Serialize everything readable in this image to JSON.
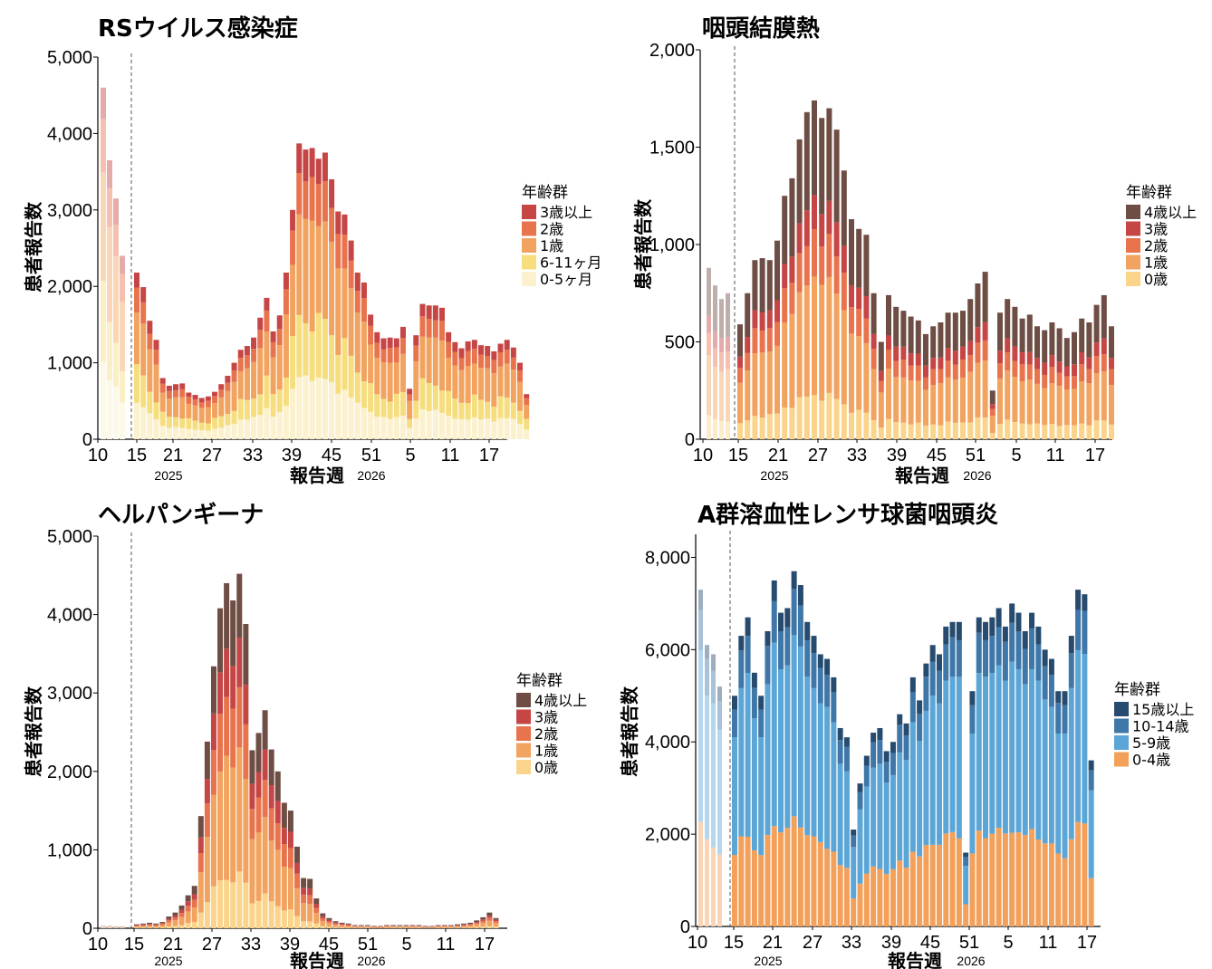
{
  "chart_data": [
    {
      "type": "bar",
      "stacked": true,
      "title": "RSウイルス感染症",
      "ylabel": "患者報告数",
      "xlabel": "報告週",
      "ylim": [
        0,
        5000
      ],
      "yticks": [
        "0",
        "1,000",
        "2,000",
        "3,000",
        "4,000",
        "5,000"
      ],
      "xticks": [
        "10",
        "15",
        "21",
        "27",
        "33",
        "39",
        "45",
        "51",
        "5",
        "11",
        "17"
      ],
      "year_labels": [
        "2025",
        "2026"
      ],
      "legend": {
        "title": "年齢群",
        "placement": "right"
      },
      "history_weeks": [
        "10",
        "11",
        "12",
        "13"
      ],
      "history_totals": [
        4600,
        3650,
        3150,
        2400
      ],
      "weeks_start": "2025-W15",
      "totals": [
        2180,
        1990,
        1550,
        1300,
        800,
        700,
        720,
        730,
        610,
        580,
        540,
        560,
        620,
        720,
        830,
        1000,
        1170,
        1220,
        1330,
        1590,
        1850,
        1410,
        1620,
        2180,
        3000,
        3870,
        3790,
        3810,
        3670,
        3750,
        3400,
        2980,
        2940,
        2600,
        2180,
        2050,
        1630,
        1400,
        1320,
        1330,
        1320,
        1470,
        660,
        1360,
        1770,
        1750,
        1750,
        1720,
        1400,
        1270,
        1190,
        1280,
        1300,
        1230,
        1220,
        1150,
        1250,
        1300,
        1200,
        1000,
        590
      ],
      "series": [
        {
          "name": "3歳以上",
          "color": "#C64545",
          "shares": [
            0.09,
            0.1,
            0.11,
            0.1
          ]
        },
        {
          "name": "2歳",
          "color": "#E8744E",
          "shares": [
            0.15,
            0.14,
            0.13,
            0.15
          ]
        },
        {
          "name": "1歳",
          "color": "#F1A35F",
          "shares": [
            0.31,
            0.34,
            0.36,
            0.38
          ]
        },
        {
          "name": "6-11ヶ月",
          "color": "#F6DE7E",
          "shares": [
            0.23,
            0.21,
            0.18,
            0.17
          ]
        },
        {
          "name": "0-5ヶ月",
          "color": "#FBF1CE",
          "shares": [
            0.22,
            0.21,
            0.22,
            0.2
          ]
        }
      ]
    },
    {
      "type": "bar",
      "stacked": true,
      "title": "咽頭結膜熱",
      "ylabel": "患者報告数",
      "xlabel": "報告週",
      "ylim": [
        0,
        2000
      ],
      "yticks": [
        "0",
        "500",
        "1,000",
        "1,500",
        "2,000"
      ],
      "xticks": [
        "10",
        "15",
        "21",
        "27",
        "33",
        "39",
        "45",
        "51",
        "5",
        "11",
        "17"
      ],
      "year_labels": [
        "2025",
        "2026"
      ],
      "legend": {
        "title": "年齢群",
        "placement": "right"
      },
      "history_weeks": [
        "10",
        "11",
        "12",
        "13"
      ],
      "history_totals": [
        880,
        790,
        720,
        750
      ],
      "weeks_start": "2025-W15",
      "totals": [
        590,
        750,
        920,
        930,
        920,
        1020,
        1250,
        1340,
        1540,
        1680,
        1740,
        1650,
        1700,
        1590,
        1380,
        1130,
        1080,
        1050,
        750,
        500,
        740,
        680,
        660,
        630,
        610,
        540,
        580,
        600,
        650,
        650,
        660,
        720,
        800,
        860,
        250,
        650,
        720,
        680,
        620,
        640,
        580,
        560,
        600,
        570,
        520,
        550,
        620,
        600,
        690,
        740,
        580
      ],
      "series": [
        {
          "name": "4歳以上",
          "color": "#6E4E44",
          "shares": [
            0.28,
            0.3,
            0.28,
            0.3
          ]
        },
        {
          "name": "3歳",
          "color": "#C64545",
          "shares": [
            0.1,
            0.11,
            0.1,
            0.1
          ]
        },
        {
          "name": "2歳",
          "color": "#E8744E",
          "shares": [
            0.13,
            0.12,
            0.14,
            0.12
          ]
        },
        {
          "name": "1歳",
          "color": "#F1A35F",
          "shares": [
            0.35,
            0.34,
            0.35,
            0.36
          ]
        },
        {
          "name": "0歳",
          "color": "#FAD48A",
          "shares": [
            0.14,
            0.13,
            0.13,
            0.12
          ]
        }
      ]
    },
    {
      "type": "bar",
      "stacked": true,
      "title": "ヘルパンギーナ",
      "ylabel": "患者報告数",
      "xlabel": "報告週",
      "ylim": [
        0,
        5000
      ],
      "yticks": [
        "0",
        "1,000",
        "2,000",
        "3,000",
        "4,000",
        "5,000"
      ],
      "xticks": [
        "10",
        "15",
        "21",
        "27",
        "33",
        "39",
        "45",
        "51",
        "5",
        "11",
        "17"
      ],
      "year_labels": [
        "2025",
        "2026"
      ],
      "legend": {
        "title": "年齢群",
        "placement": "right"
      },
      "history_weeks": [
        "10",
        "11",
        "12",
        "13"
      ],
      "history_totals": [
        30,
        30,
        25,
        25
      ],
      "weeks_start": "2025-W15",
      "totals": [
        50,
        60,
        70,
        60,
        80,
        150,
        200,
        290,
        420,
        540,
        1430,
        2380,
        3340,
        4080,
        4400,
        4180,
        4520,
        3880,
        2270,
        2490,
        2780,
        2280,
        2000,
        1600,
        1500,
        1040,
        640,
        630,
        380,
        190,
        130,
        90,
        70,
        60,
        40,
        40,
        40,
        30,
        30,
        40,
        40,
        40,
        40,
        40,
        40,
        30,
        30,
        40,
        40,
        40,
        50,
        60,
        70,
        100,
        140,
        200,
        130
      ],
      "series": [
        {
          "name": "4歳以上",
          "color": "#6E4E44",
          "shares": [
            0.18,
            0.2,
            0.19,
            0.2
          ]
        },
        {
          "name": "3歳",
          "color": "#C64545",
          "shares": [
            0.14,
            0.13,
            0.14,
            0.13
          ]
        },
        {
          "name": "2歳",
          "color": "#E8744E",
          "shares": [
            0.17,
            0.18,
            0.17,
            0.18
          ]
        },
        {
          "name": "1歳",
          "color": "#F1A35F",
          "shares": [
            0.35,
            0.34,
            0.36,
            0.35
          ]
        },
        {
          "name": "0歳",
          "color": "#FAD48A",
          "shares": [
            0.16,
            0.15,
            0.14,
            0.14
          ]
        }
      ]
    },
    {
      "type": "bar",
      "stacked": true,
      "title": "A群溶血性レンサ球菌咽頭炎",
      "ylabel": "患者報告数",
      "xlabel": "報告週",
      "ylim": [
        0,
        8500
      ],
      "yticks": [
        "0",
        "2,000",
        "4,000",
        "6,000",
        "8,000"
      ],
      "xticks": [
        "10",
        "15",
        "21",
        "27",
        "33",
        "39",
        "45",
        "51",
        "5",
        "11",
        "17"
      ],
      "year_labels": [
        "2025",
        "2026"
      ],
      "legend": {
        "title": "年齢群",
        "placement": "right"
      },
      "history_weeks": [
        "10",
        "11",
        "12",
        "13"
      ],
      "history_totals": [
        7300,
        6100,
        5900,
        5200
      ],
      "weeks_start": "2025-W15",
      "totals": [
        5000,
        6300,
        6700,
        5500,
        5000,
        6400,
        7500,
        6800,
        6900,
        7700,
        7400,
        6600,
        6300,
        5900,
        5800,
        5400,
        4300,
        4100,
        2100,
        3100,
        3700,
        4200,
        4300,
        3800,
        4000,
        4600,
        4400,
        5400,
        4900,
        5700,
        6100,
        5900,
        6500,
        6600,
        6600,
        1600,
        5100,
        6700,
        6600,
        6700,
        6900,
        6500,
        7000,
        6800,
        6400,
        6800,
        6500,
        6000,
        5800,
        5100,
        5100,
        6300,
        7300,
        7200,
        3600
      ],
      "series": [
        {
          "name": "15歳以上",
          "color": "#274B6E",
          "shares": [
            0.06,
            0.05,
            0.06,
            0.06
          ]
        },
        {
          "name": "10-14歳",
          "color": "#3E77A8",
          "shares": [
            0.12,
            0.13,
            0.12,
            0.12
          ]
        },
        {
          "name": "5-9歳",
          "color": "#5BA6D6",
          "shares": [
            0.51,
            0.51,
            0.53,
            0.52
          ]
        },
        {
          "name": "0-4歳",
          "color": "#F3A05A",
          "shares": [
            0.31,
            0.31,
            0.29,
            0.3
          ]
        }
      ]
    }
  ]
}
